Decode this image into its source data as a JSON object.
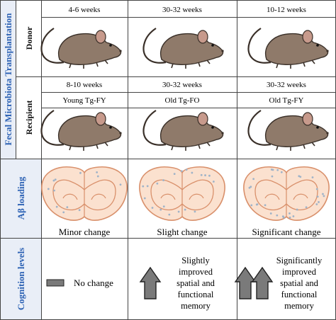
{
  "rows": {
    "fecal_label": "Fecal Microbiota Transplantation",
    "donor_label": "Donor",
    "recipient_label": "Recipient",
    "abeta_label": "Aβ loading",
    "cognition_label": "Cognition levels"
  },
  "donor": [
    {
      "age": "4-6 weeks"
    },
    {
      "age": "30-32 weeks"
    },
    {
      "age": "10-12 weeks"
    }
  ],
  "recipient": [
    {
      "age": "8-10 weeks",
      "group": "Young Tg-FY"
    },
    {
      "age": "30-32 weeks",
      "group": "Old Tg-FO"
    },
    {
      "age": "30-32 weeks",
      "group": "Old Tg-FY"
    }
  ],
  "abeta": [
    {
      "label": "Minor change",
      "plaque_count": 12
    },
    {
      "label": "Slight change",
      "plaque_count": 20
    },
    {
      "label": "Significant change",
      "plaque_count": 30
    }
  ],
  "cognition": [
    {
      "lines": [
        "No change"
      ],
      "arrows": 0
    },
    {
      "lines": [
        "Slightly",
        "improved",
        "spatial and",
        "functional",
        "memory"
      ],
      "arrows": 1
    },
    {
      "lines": [
        "Significantly",
        "improved",
        "spatial and",
        "functional",
        "memory"
      ],
      "arrows": 2
    }
  ],
  "icons": {
    "mouse": "mouse-icon",
    "brain": "brain-section-icon",
    "arrow": "up-arrow-icon",
    "bar": "no-change-bar-icon"
  },
  "colors": {
    "row_label_blue": "#2e63b5",
    "section_bg": "#e9eef7",
    "mouse_fill": "#8f7a6a",
    "mouse_ear": "#c79a8c",
    "brain_fill": "#fbe1cf",
    "brain_stroke": "#d9906b",
    "arrow_fill": "#7a7a7a"
  }
}
